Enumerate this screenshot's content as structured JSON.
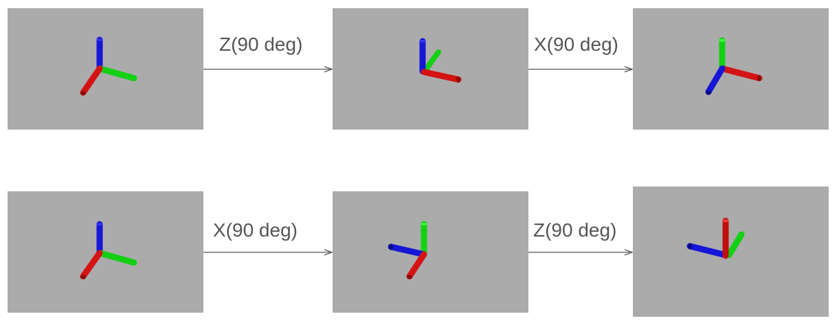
{
  "colors": {
    "background": "#ababab",
    "x_axis": "#e01010",
    "y_axis": "#10d810",
    "z_axis": "#1010e0",
    "arrow": "#555555"
  },
  "rows": [
    {
      "id": "row-z-then-x",
      "steps": [
        {
          "label": "Z(90 deg)"
        },
        {
          "label": "X(90 deg)"
        }
      ]
    },
    {
      "id": "row-x-then-z",
      "steps": [
        {
          "label": "X(90 deg)"
        },
        {
          "label": "Z(90 deg)"
        }
      ]
    }
  ]
}
